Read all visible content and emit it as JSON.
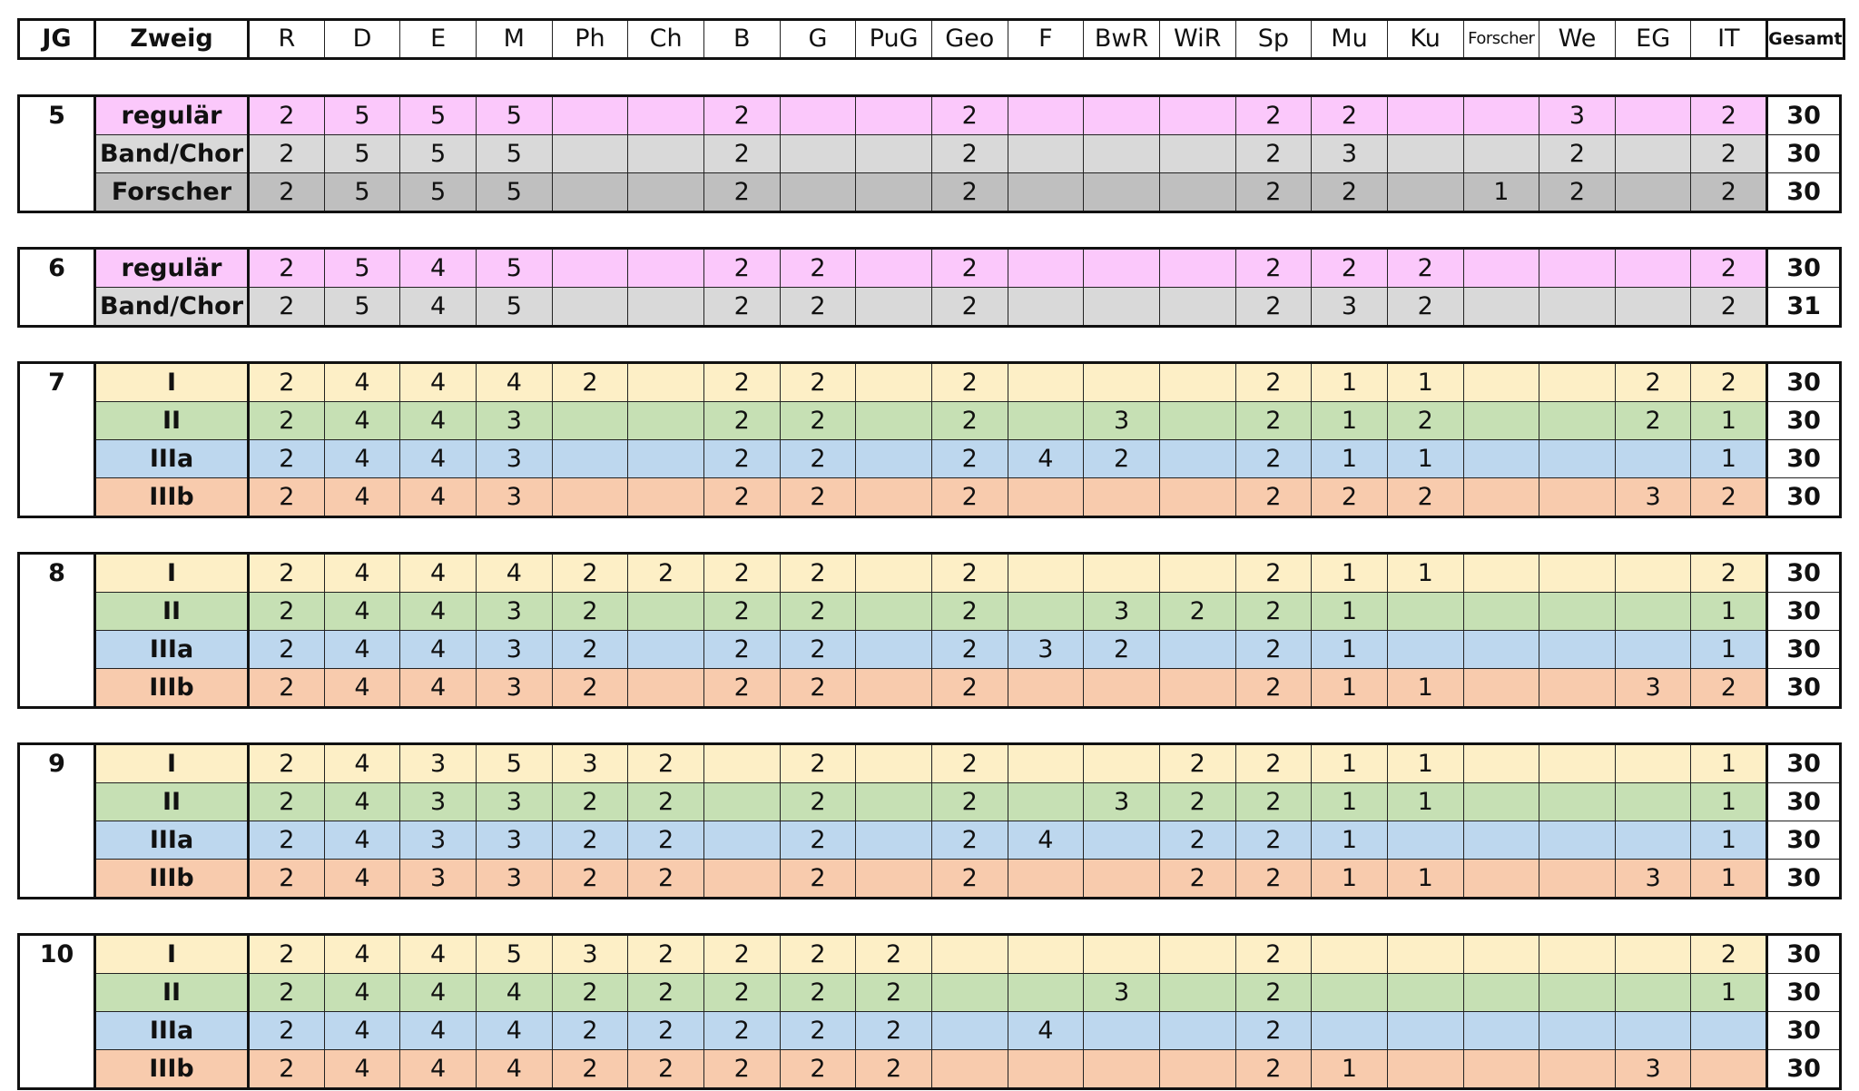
{
  "header": {
    "jg": "JG",
    "zweig": "Zweig",
    "subjects": [
      "R",
      "D",
      "E",
      "M",
      "Ph",
      "Ch",
      "B",
      "G",
      "PuG",
      "Geo",
      "F",
      "BwR",
      "WiR",
      "Sp",
      "Mu",
      "Ku",
      "Forscher",
      "We",
      "EG",
      "IT"
    ],
    "gesamt": "Gesamt"
  },
  "groups": [
    {
      "jg": "5",
      "rows": [
        {
          "zweig": "regulär",
          "color": "#fbc8fb",
          "cells": [
            "2",
            "5",
            "5",
            "5",
            "",
            "",
            "2",
            "",
            "",
            "2",
            "",
            "",
            "",
            "2",
            "2",
            "",
            "",
            "3",
            "",
            "2"
          ],
          "gesamt": "30"
        },
        {
          "zweig": "Band/Chor",
          "color": "#d9d9d9",
          "cells": [
            "2",
            "5",
            "5",
            "5",
            "",
            "",
            "2",
            "",
            "",
            "2",
            "",
            "",
            "",
            "2",
            "3",
            "",
            "",
            "2",
            "",
            "2"
          ],
          "gesamt": "30"
        },
        {
          "zweig": "Forscher",
          "color": "#bfbfbf",
          "cells": [
            "2",
            "5",
            "5",
            "5",
            "",
            "",
            "2",
            "",
            "",
            "2",
            "",
            "",
            "",
            "2",
            "2",
            "",
            "1",
            "2",
            "",
            "2"
          ],
          "gesamt": "30"
        }
      ]
    },
    {
      "jg": "6",
      "rows": [
        {
          "zweig": "regulär",
          "color": "#fbc8fb",
          "cells": [
            "2",
            "5",
            "4",
            "5",
            "",
            "",
            "2",
            "2",
            "",
            "2",
            "",
            "",
            "",
            "2",
            "2",
            "2",
            "",
            "",
            "",
            "2"
          ],
          "gesamt": "30"
        },
        {
          "zweig": "Band/Chor",
          "color": "#d9d9d9",
          "cells": [
            "2",
            "5",
            "4",
            "5",
            "",
            "",
            "2",
            "2",
            "",
            "2",
            "",
            "",
            "",
            "2",
            "3",
            "2",
            "",
            "",
            "",
            "2"
          ],
          "gesamt": "31"
        }
      ]
    },
    {
      "jg": "7",
      "rows": [
        {
          "zweig": "I",
          "color": "#fdefc6",
          "cells": [
            "2",
            "4",
            "4",
            "4",
            "2",
            "",
            "2",
            "2",
            "",
            "2",
            "",
            "",
            "",
            "2",
            "1",
            "1",
            "",
            "",
            "2",
            "2"
          ],
          "gesamt": "30"
        },
        {
          "zweig": "II",
          "color": "#c6e0b4",
          "cells": [
            "2",
            "4",
            "4",
            "3",
            "",
            "",
            "2",
            "2",
            "",
            "2",
            "",
            "3",
            "",
            "2",
            "1",
            "2",
            "",
            "",
            "2",
            "1"
          ],
          "gesamt": "30"
        },
        {
          "zweig": "IIIa",
          "color": "#bdd7ee",
          "cells": [
            "2",
            "4",
            "4",
            "3",
            "",
            "",
            "2",
            "2",
            "",
            "2",
            "4",
            "2",
            "",
            "2",
            "1",
            "1",
            "",
            "",
            "",
            "1"
          ],
          "gesamt": "30"
        },
        {
          "zweig": "IIIb",
          "color": "#f8cbad",
          "cells": [
            "2",
            "4",
            "4",
            "3",
            "",
            "",
            "2",
            "2",
            "",
            "2",
            "",
            "",
            "",
            "2",
            "2",
            "2",
            "",
            "",
            "3",
            "2"
          ],
          "gesamt": "30"
        }
      ]
    },
    {
      "jg": "8",
      "rows": [
        {
          "zweig": "I",
          "color": "#fdefc6",
          "cells": [
            "2",
            "4",
            "4",
            "4",
            "2",
            "2",
            "2",
            "2",
            "",
            "2",
            "",
            "",
            "",
            "2",
            "1",
            "1",
            "",
            "",
            "",
            "2"
          ],
          "gesamt": "30"
        },
        {
          "zweig": "II",
          "color": "#c6e0b4",
          "cells": [
            "2",
            "4",
            "4",
            "3",
            "2",
            "",
            "2",
            "2",
            "",
            "2",
            "",
            "3",
            "2",
            "2",
            "1",
            "",
            "",
            "",
            "",
            "1"
          ],
          "gesamt": "30"
        },
        {
          "zweig": "IIIa",
          "color": "#bdd7ee",
          "cells": [
            "2",
            "4",
            "4",
            "3",
            "2",
            "",
            "2",
            "2",
            "",
            "2",
            "3",
            "2",
            "",
            "2",
            "1",
            "",
            "",
            "",
            "",
            "1"
          ],
          "gesamt": "30"
        },
        {
          "zweig": "IIIb",
          "color": "#f8cbad",
          "cells": [
            "2",
            "4",
            "4",
            "3",
            "2",
            "",
            "2",
            "2",
            "",
            "2",
            "",
            "",
            "",
            "2",
            "1",
            "1",
            "",
            "",
            "3",
            "2"
          ],
          "gesamt": "30"
        }
      ]
    },
    {
      "jg": "9",
      "rows": [
        {
          "zweig": "I",
          "color": "#fdefc6",
          "cells": [
            "2",
            "4",
            "3",
            "5",
            "3",
            "2",
            "",
            "2",
            "",
            "2",
            "",
            "",
            "2",
            "2",
            "1",
            "1",
            "",
            "",
            "",
            "1"
          ],
          "gesamt": "30"
        },
        {
          "zweig": "II",
          "color": "#c6e0b4",
          "cells": [
            "2",
            "4",
            "3",
            "3",
            "2",
            "2",
            "",
            "2",
            "",
            "2",
            "",
            "3",
            "2",
            "2",
            "1",
            "1",
            "",
            "",
            "",
            "1"
          ],
          "gesamt": "30"
        },
        {
          "zweig": "IIIa",
          "color": "#bdd7ee",
          "cells": [
            "2",
            "4",
            "3",
            "3",
            "2",
            "2",
            "",
            "2",
            "",
            "2",
            "4",
            "",
            "2",
            "2",
            "1",
            "",
            "",
            "",
            "",
            "1"
          ],
          "gesamt": "30"
        },
        {
          "zweig": "IIIb",
          "color": "#f8cbad",
          "cells": [
            "2",
            "4",
            "3",
            "3",
            "2",
            "2",
            "",
            "2",
            "",
            "2",
            "",
            "",
            "2",
            "2",
            "1",
            "1",
            "",
            "",
            "3",
            "1"
          ],
          "gesamt": "30"
        }
      ]
    },
    {
      "jg": "10",
      "rows": [
        {
          "zweig": "I",
          "color": "#fdefc6",
          "cells": [
            "2",
            "4",
            "4",
            "5",
            "3",
            "2",
            "2",
            "2",
            "2",
            "",
            "",
            "",
            "",
            "2",
            "",
            "",
            "",
            "",
            "",
            "2"
          ],
          "gesamt": "30"
        },
        {
          "zweig": "II",
          "color": "#c6e0b4",
          "cells": [
            "2",
            "4",
            "4",
            "4",
            "2",
            "2",
            "2",
            "2",
            "2",
            "",
            "",
            "3",
            "",
            "2",
            "",
            "",
            "",
            "",
            "",
            "1"
          ],
          "gesamt": "30"
        },
        {
          "zweig": "IIIa",
          "color": "#bdd7ee",
          "cells": [
            "2",
            "4",
            "4",
            "4",
            "2",
            "2",
            "2",
            "2",
            "2",
            "",
            "4",
            "",
            "",
            "2",
            "",
            "",
            "",
            "",
            "",
            ""
          ],
          "gesamt": "30"
        },
        {
          "zweig": "IIIb",
          "color": "#f8cbad",
          "cells": [
            "2",
            "4",
            "4",
            "4",
            "2",
            "2",
            "2",
            "2",
            "2",
            "",
            "",
            "",
            "",
            "2",
            "1",
            "",
            "",
            "",
            "3",
            ""
          ],
          "gesamt": "30"
        }
      ]
    }
  ]
}
